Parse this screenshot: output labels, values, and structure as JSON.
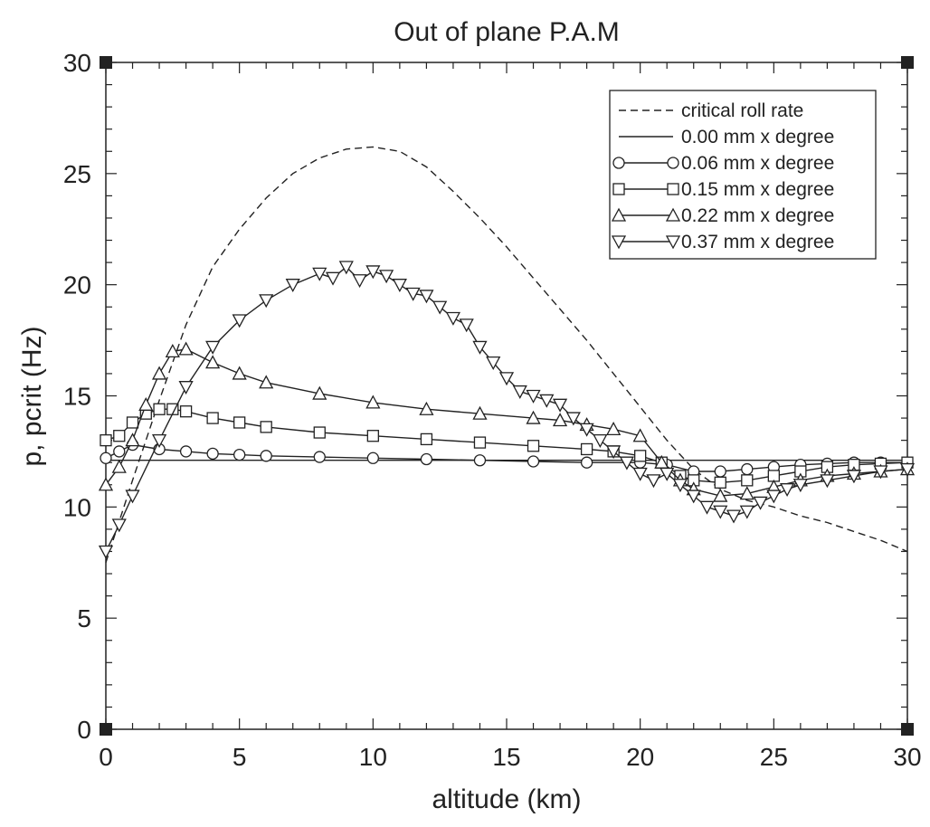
{
  "chart_data": {
    "type": "line",
    "title": "Out of plane P.A.M",
    "xlabel": "altitude (km)",
    "ylabel": "p, pcrit (Hz)",
    "xlim": [
      0,
      30
    ],
    "ylim": [
      0,
      30
    ],
    "xticks": [
      0,
      5,
      10,
      15,
      20,
      25,
      30
    ],
    "yticks": [
      0,
      5,
      10,
      15,
      20,
      25,
      30
    ],
    "legend_position": "top-right",
    "series": [
      {
        "name": "critical roll rate",
        "style": "dashed",
        "marker": "none",
        "x": [
          0,
          1,
          2,
          3,
          4,
          5,
          6,
          7,
          8,
          9,
          10,
          11,
          12,
          13,
          14,
          15,
          16,
          17,
          18,
          19,
          20,
          21,
          22,
          23,
          24,
          25,
          26,
          27,
          28,
          29,
          30
        ],
        "y": [
          7.5,
          11.2,
          14.8,
          18.2,
          20.8,
          22.5,
          23.9,
          25.0,
          25.7,
          26.1,
          26.2,
          26.0,
          25.3,
          24.2,
          23.0,
          21.7,
          20.3,
          18.9,
          17.5,
          16.0,
          14.5,
          13.0,
          11.7,
          10.8,
          10.3,
          10.0,
          9.6,
          9.3,
          8.9,
          8.5,
          8.0
        ]
      },
      {
        "name": "0.00 mm x degree",
        "style": "solid",
        "marker": "none",
        "x": [
          0,
          30
        ],
        "y": [
          12.1,
          12.1
        ]
      },
      {
        "name": "0.06 mm x degree",
        "style": "solid",
        "marker": "circle",
        "x": [
          0,
          0.5,
          1,
          2,
          3,
          4,
          5,
          6,
          8,
          10,
          12,
          14,
          16,
          18,
          20,
          21,
          22,
          23,
          24,
          25,
          26,
          27,
          28,
          29,
          30
        ],
        "y": [
          12.2,
          12.5,
          12.8,
          12.6,
          12.5,
          12.4,
          12.35,
          12.3,
          12.25,
          12.2,
          12.15,
          12.1,
          12.05,
          12.0,
          12.0,
          11.9,
          11.6,
          11.6,
          11.7,
          11.8,
          11.9,
          11.95,
          12.0,
          12.0,
          12.0
        ]
      },
      {
        "name": "0.15 mm x degree",
        "style": "solid",
        "marker": "square",
        "x": [
          0,
          0.5,
          1,
          1.5,
          2,
          2.5,
          3,
          4,
          5,
          6,
          8,
          10,
          12,
          14,
          16,
          18,
          19,
          20,
          20.8,
          21.5,
          22,
          23,
          24,
          25,
          26,
          27,
          28,
          29,
          30
        ],
        "y": [
          13.0,
          13.2,
          13.8,
          14.2,
          14.4,
          14.4,
          14.3,
          14.0,
          13.8,
          13.6,
          13.35,
          13.2,
          13.05,
          12.9,
          12.75,
          12.6,
          12.5,
          12.3,
          12.0,
          11.4,
          11.2,
          11.1,
          11.2,
          11.4,
          11.6,
          11.8,
          11.9,
          11.95,
          12.0
        ]
      },
      {
        "name": "0.22 mm x degree",
        "style": "solid",
        "marker": "triangle-up",
        "x": [
          0,
          0.5,
          1,
          1.5,
          2,
          2.5,
          3,
          4,
          5,
          6,
          8,
          10,
          12,
          14,
          16,
          17,
          18,
          19,
          20,
          20.8,
          21.5,
          22,
          23,
          24,
          25,
          26,
          27,
          28,
          29,
          30
        ],
        "y": [
          11.0,
          11.8,
          13.0,
          14.6,
          16.0,
          17.0,
          17.1,
          16.5,
          16.0,
          15.6,
          15.1,
          14.7,
          14.4,
          14.2,
          14.0,
          13.9,
          13.7,
          13.5,
          13.2,
          12.0,
          11.2,
          10.8,
          10.5,
          10.6,
          10.9,
          11.2,
          11.4,
          11.5,
          11.6,
          11.7
        ]
      },
      {
        "name": "0.37 mm x degree",
        "style": "solid",
        "marker": "triangle-down",
        "x": [
          0,
          0.5,
          1,
          2,
          3,
          4,
          5,
          6,
          7,
          8,
          8.5,
          9,
          9.5,
          10,
          10.5,
          11,
          11.5,
          12,
          12.5,
          13,
          13.5,
          14,
          14.5,
          15,
          15.5,
          16,
          16.5,
          17,
          17.5,
          18,
          18.5,
          19,
          19.5,
          20,
          20.5,
          21,
          21.5,
          22,
          22.5,
          23,
          23.5,
          24,
          24.5,
          25,
          25.5,
          26,
          27,
          28,
          29,
          30
        ],
        "y": [
          8.0,
          9.2,
          10.5,
          13.0,
          15.4,
          17.2,
          18.4,
          19.3,
          20.0,
          20.5,
          20.3,
          20.8,
          20.2,
          20.6,
          20.4,
          20.0,
          19.6,
          19.5,
          19.0,
          18.5,
          18.2,
          17.2,
          16.5,
          15.8,
          15.2,
          15.0,
          14.8,
          14.6,
          14.0,
          13.5,
          13.0,
          12.5,
          12.0,
          11.5,
          11.2,
          11.5,
          11.0,
          10.5,
          10.0,
          9.8,
          9.6,
          9.8,
          10.2,
          10.5,
          10.8,
          11.0,
          11.2,
          11.4,
          11.6,
          11.7
        ]
      }
    ]
  }
}
